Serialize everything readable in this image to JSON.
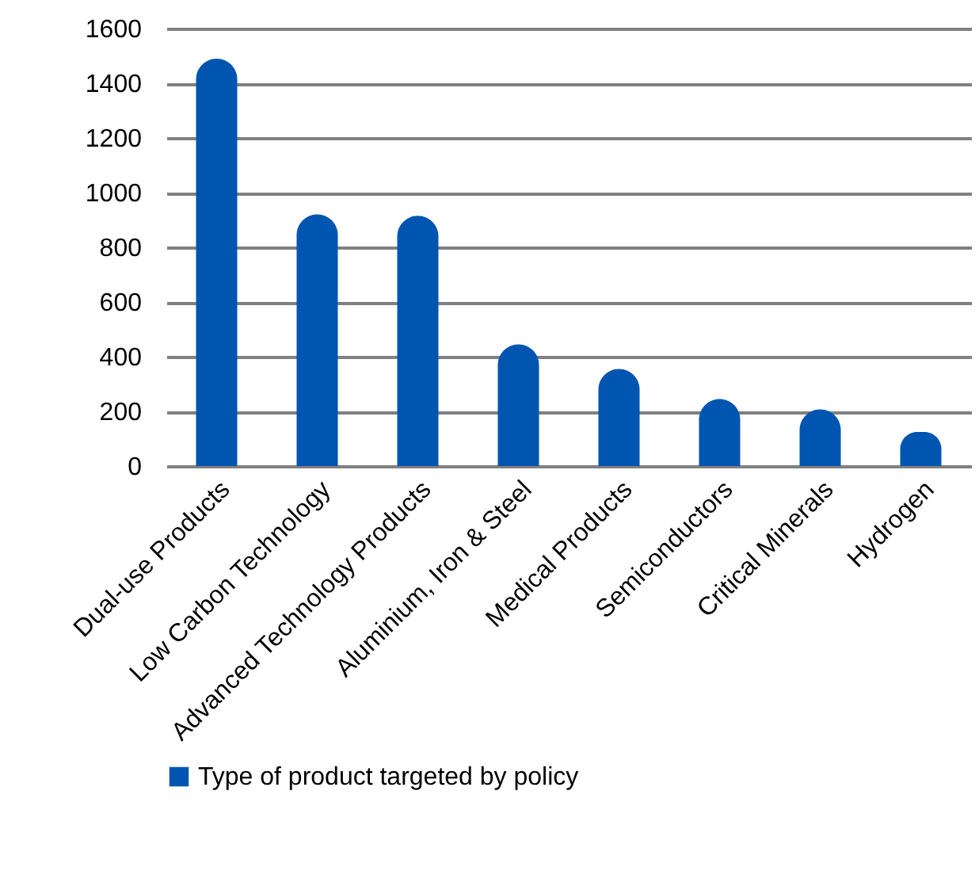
{
  "chart_data": {
    "type": "bar",
    "categories": [
      "Dual-use Products",
      "Low Carbon Technology",
      "Advanced Technology Products",
      "Aluminium, Iron & Steel",
      "Medical Products",
      "Semiconductors",
      "Critical Minerals",
      "Hydrogen"
    ],
    "series": [
      {
        "name": "Type of product targeted by policy",
        "color": "#0055b0",
        "values": [
          1490,
          920,
          915,
          445,
          355,
          245,
          207,
          125
        ]
      }
    ],
    "ylim": [
      0,
      1600
    ],
    "yticks": [
      0,
      200,
      400,
      600,
      800,
      1000,
      1200,
      1400,
      1600
    ],
    "grid": "y",
    "legend": "bottom"
  }
}
